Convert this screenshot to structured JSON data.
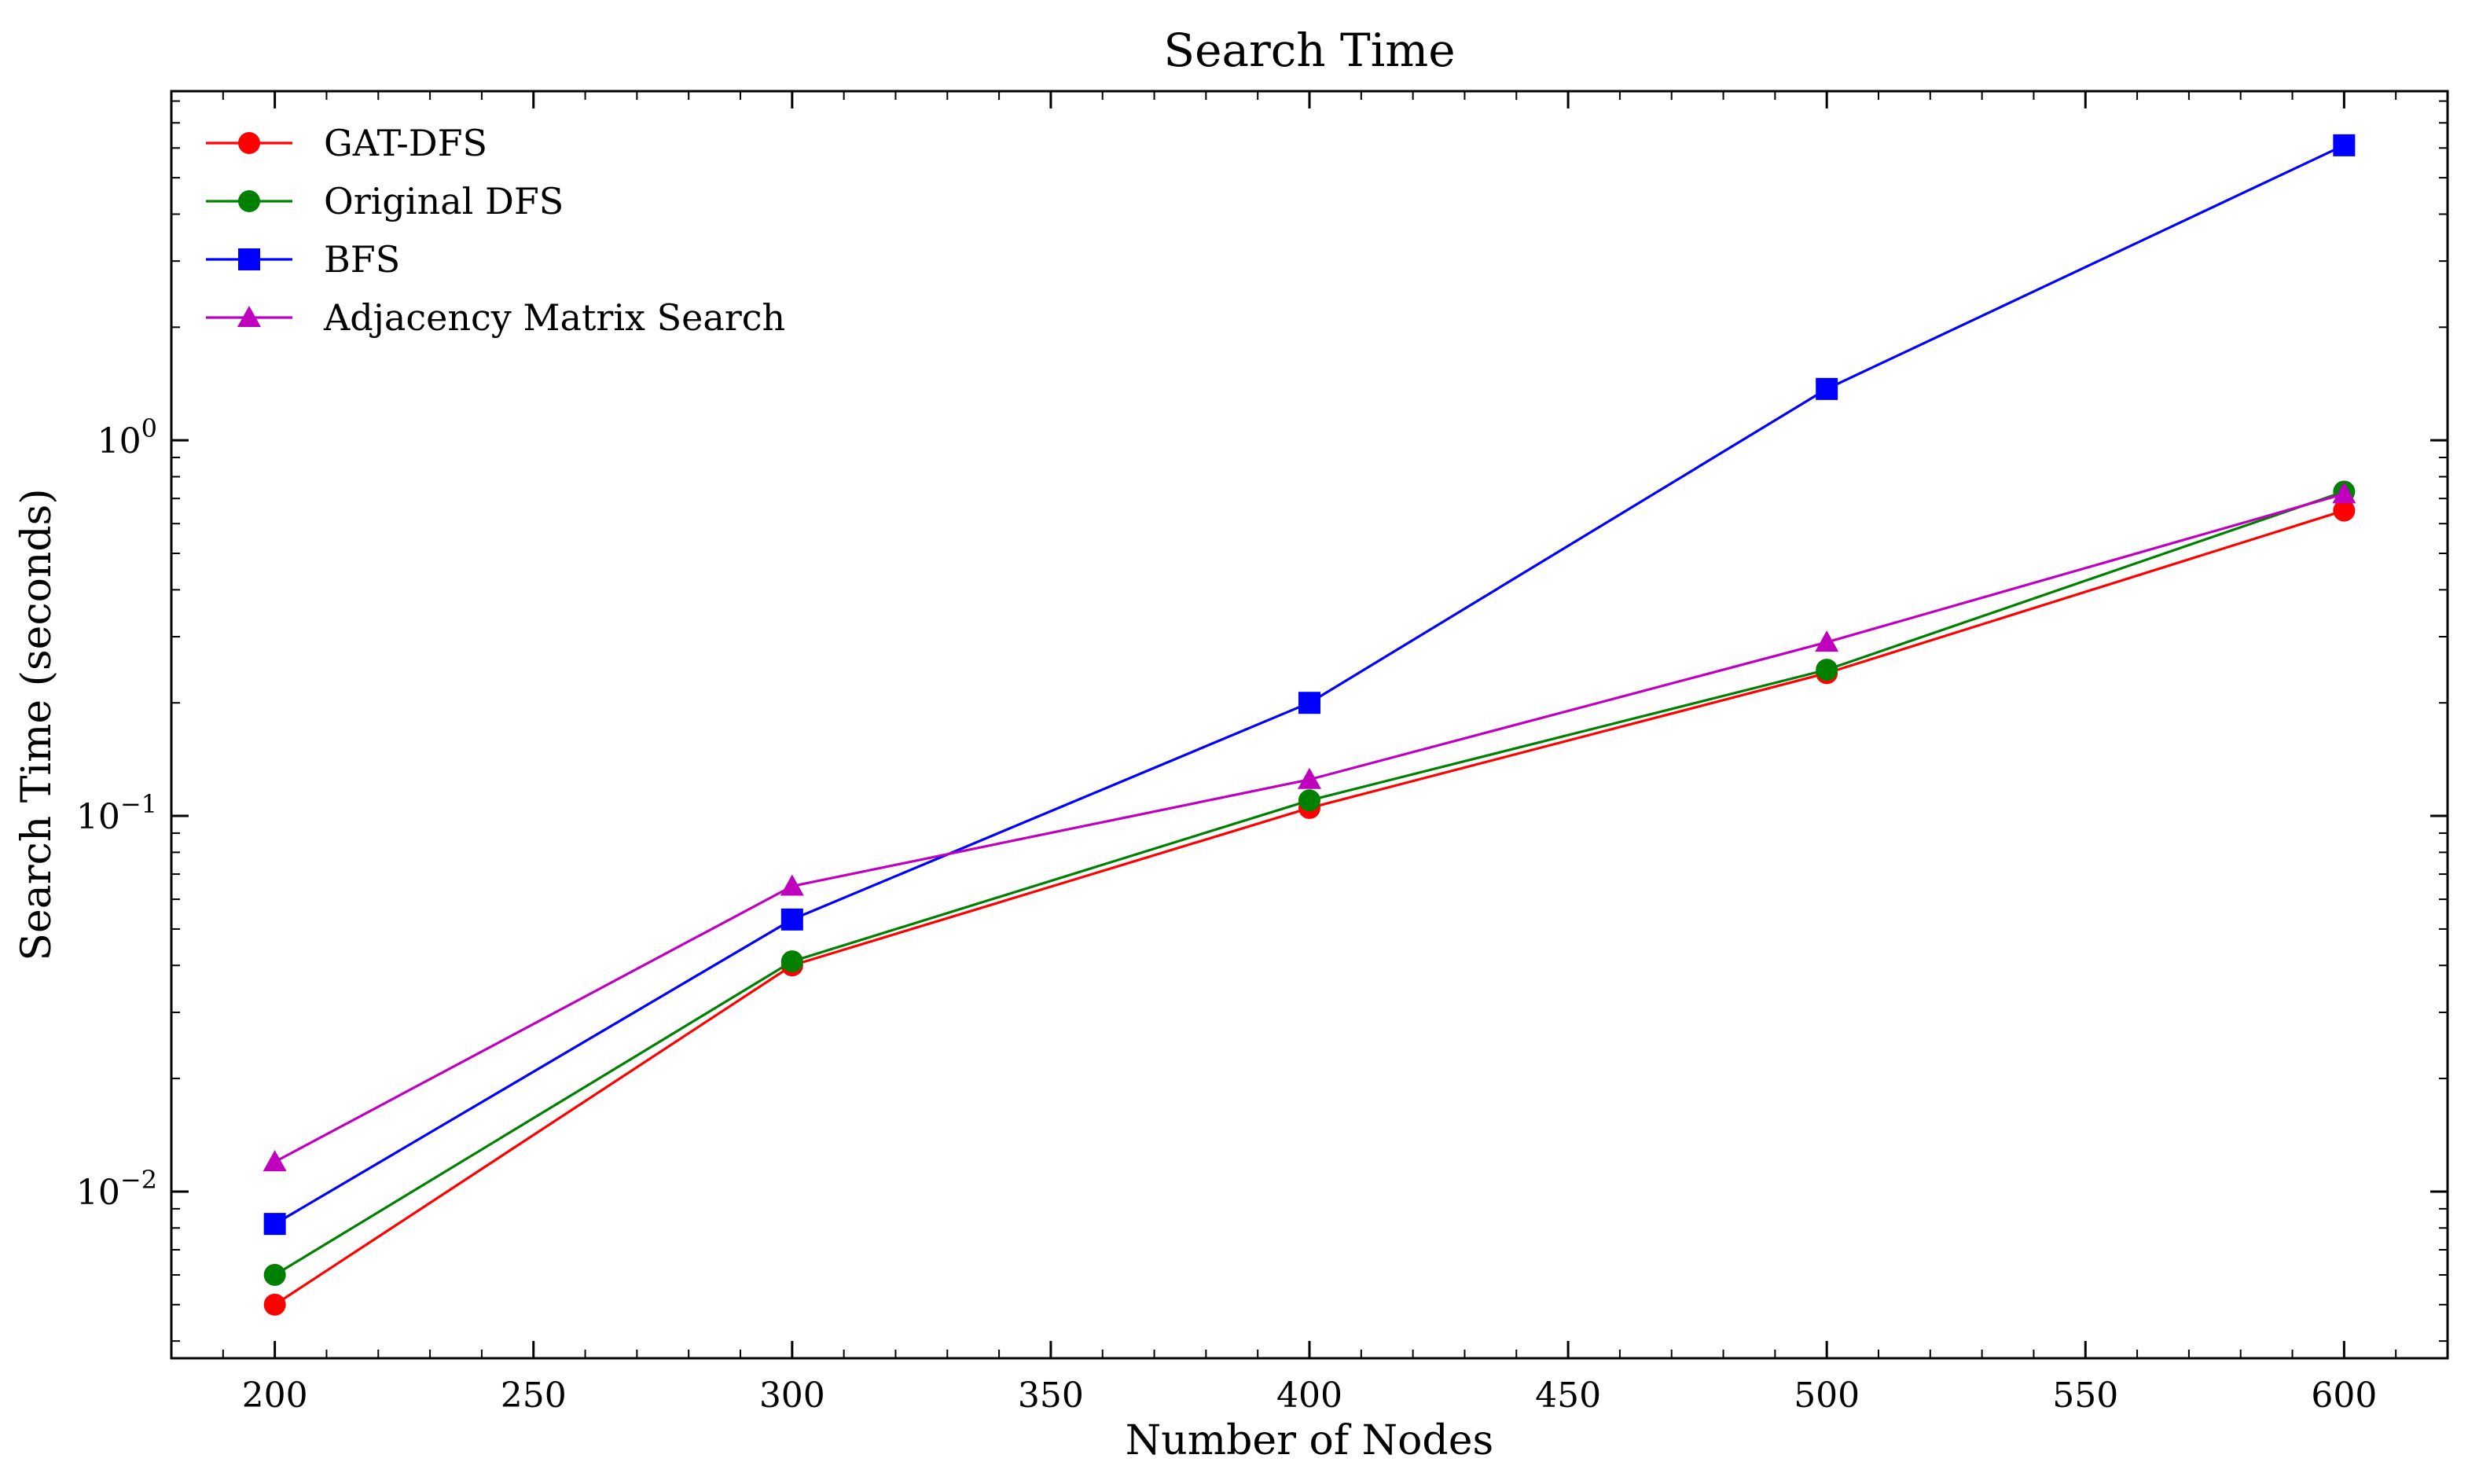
{
  "chart_data": {
    "type": "line",
    "title": "Search Time",
    "xlabel": "Number of Nodes",
    "ylabel": "Search Time (seconds)",
    "x": [
      200,
      300,
      400,
      500,
      600
    ],
    "xlim": [
      180,
      620
    ],
    "ylim": [
      0.0036,
      8.5
    ],
    "yscale": "log",
    "x_ticks": [
      200,
      250,
      300,
      350,
      400,
      450,
      500,
      550,
      600
    ],
    "y_ticks": [
      {
        "value": 0.01,
        "base": "10",
        "exp": "−2"
      },
      {
        "value": 0.1,
        "base": "10",
        "exp": "−1"
      },
      {
        "value": 1,
        "base": "10",
        "exp": "0"
      }
    ],
    "grid": false,
    "legend_position": "upper-left",
    "series": [
      {
        "name": "GAT-DFS",
        "color": "#ff0000",
        "marker": "circle",
        "values": [
          0.005,
          0.04,
          0.105,
          0.24,
          0.65
        ]
      },
      {
        "name": "Original DFS",
        "color": "#008000",
        "marker": "circle",
        "values": [
          0.006,
          0.041,
          0.11,
          0.245,
          0.73
        ]
      },
      {
        "name": "BFS",
        "color": "#0000ff",
        "marker": "square",
        "values": [
          0.0082,
          0.053,
          0.2,
          1.37,
          6.1
        ]
      },
      {
        "name": "Adjacency Matrix Search",
        "color": "#bf00bf",
        "marker": "triangle",
        "values": [
          0.012,
          0.065,
          0.125,
          0.29,
          0.72
        ]
      }
    ]
  }
}
